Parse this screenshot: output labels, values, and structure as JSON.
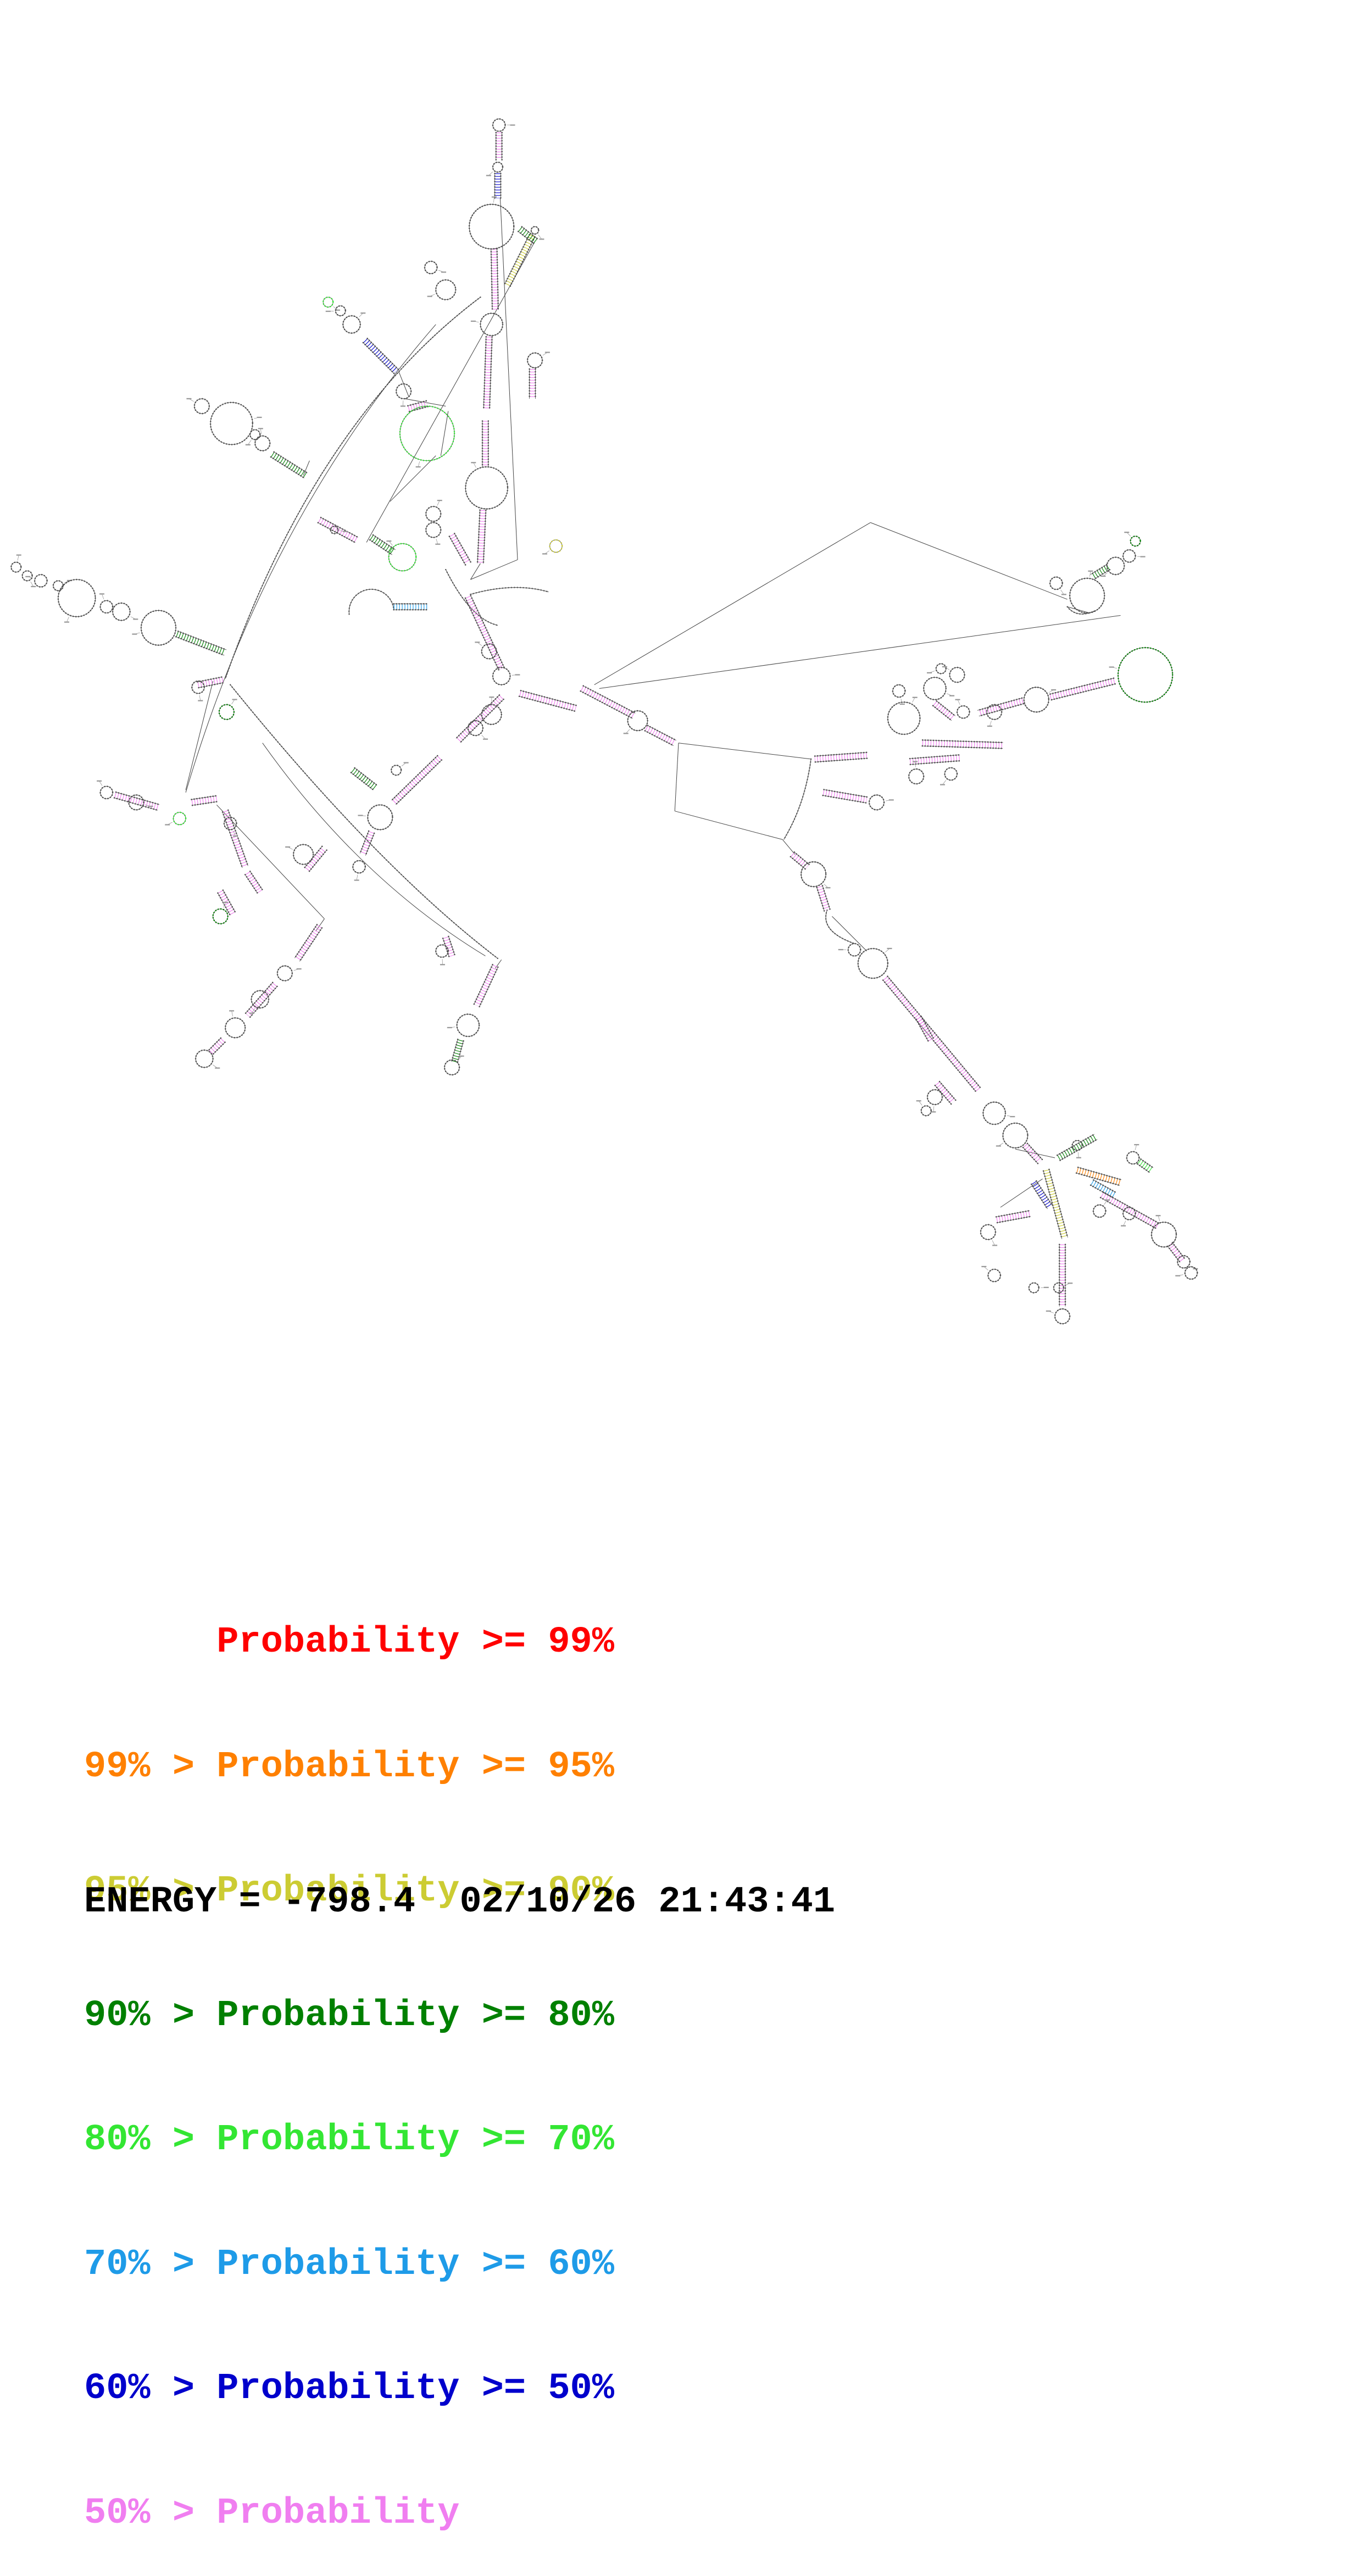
{
  "legend": {
    "items": [
      {
        "text": "Probability >= 99%",
        "color": "#ff0000"
      },
      {
        "text": "99% > Probability >= 95%",
        "color": "#ff8000"
      },
      {
        "text": "95% > Probability >= 90%",
        "color": "#cccc33"
      },
      {
        "text": "90% > Probability >= 80%",
        "color": "#008000"
      },
      {
        "text": "80% > Probability >= 70%",
        "color": "#33e633"
      },
      {
        "text": "70% > Probability >= 60%",
        "color": "#1e9be8"
      },
      {
        "text": "60% > Probability >= 50%",
        "color": "#0000cc"
      },
      {
        "text": "50% > Probability",
        "color": "#f07ef0"
      }
    ]
  },
  "footer": {
    "energy_line": "ENERGY = -798.4  02/10/26 21:43:41"
  },
  "colors": {
    "backbone": "#444444",
    "nucleotide": "#505050"
  }
}
